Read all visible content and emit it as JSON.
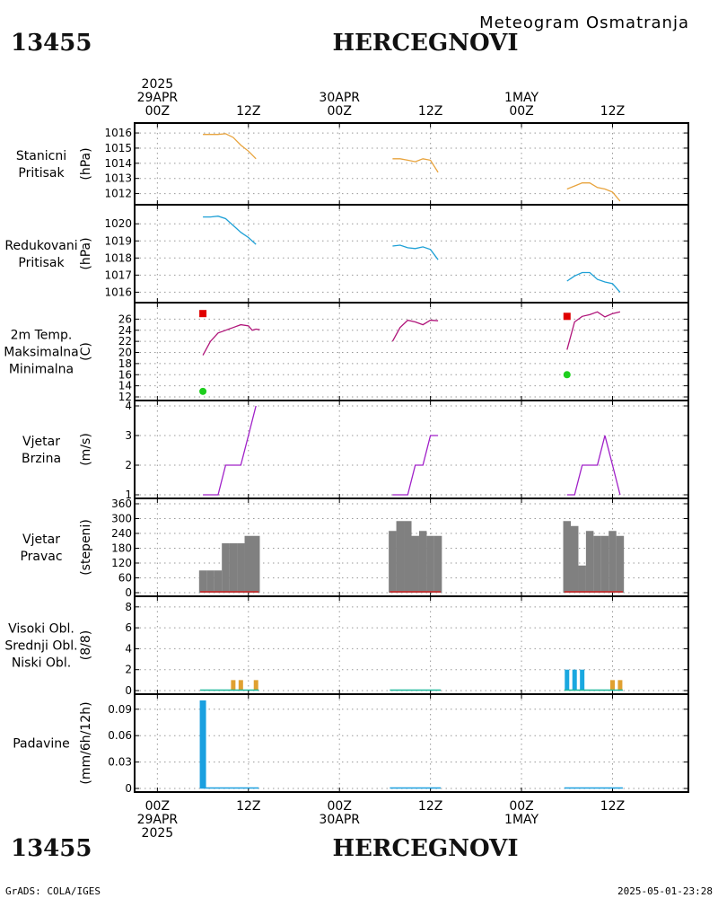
{
  "header": {
    "station_id": "13455",
    "station_name": "HERCEGNOVI",
    "product": "Meteogram Osmatranja"
  },
  "footer": {
    "station_id": "13455",
    "station_name": "HERCEGNOVI",
    "credit": "GrADS: COLA/IGES",
    "timestamp": "2025-05-01-23:28"
  },
  "time_axis": {
    "ticks": [
      {
        "h": 0,
        "lines": [
          "2025",
          "29APR",
          "00Z"
        ]
      },
      {
        "h": 12,
        "lines": [
          "12Z"
        ]
      },
      {
        "h": 24,
        "lines": [
          "30APR",
          "00Z"
        ]
      },
      {
        "h": 36,
        "lines": [
          "12Z"
        ]
      },
      {
        "h": 48,
        "lines": [
          "1MAY",
          "00Z"
        ]
      },
      {
        "h": 60,
        "lines": [
          "12Z"
        ]
      }
    ],
    "bottom_ticks": [
      {
        "h": 0,
        "lines": [
          "00Z",
          "29APR",
          "2025"
        ]
      },
      {
        "h": 12,
        "lines": [
          "12Z"
        ]
      },
      {
        "h": 24,
        "lines": [
          "00Z",
          "30APR"
        ]
      },
      {
        "h": 36,
        "lines": [
          "12Z"
        ]
      },
      {
        "h": 48,
        "lines": [
          "00Z",
          "1MAY"
        ]
      },
      {
        "h": 60,
        "lines": [
          "12Z"
        ]
      }
    ],
    "range_hours": [
      -3,
      70
    ],
    "grid": true
  },
  "colors": {
    "station_pressure": "#e8a33c",
    "reduced_pressure": "#1ea0d6",
    "temperature": "#b0157a",
    "tmax": "#e00000",
    "tmin": "#1ecf1e",
    "wind": "#a020c8",
    "wind_dir_bar": "#808080",
    "high_cloud": "#1aa8e0",
    "mid_cloud": "#1ab89a",
    "low_cloud": "#e0a030",
    "precip": "#1aa0e0"
  },
  "chart_data": [
    {
      "type": "line",
      "label_lines": [
        "Stanicni",
        "Pritisak"
      ],
      "unit": "(hPa)",
      "ylim": [
        1011.5,
        1016.3
      ],
      "yticks": [
        1012,
        1013,
        1014,
        1015,
        1016
      ],
      "series": [
        {
          "color_key": "station_pressure",
          "segments": [
            [
              [
                6,
                1015.9
              ],
              [
                7,
                1015.9
              ],
              [
                8,
                1015.9
              ],
              [
                9,
                1015.95
              ],
              [
                10,
                1015.7
              ],
              [
                11,
                1015.2
              ],
              [
                12,
                1014.8
              ],
              [
                13,
                1014.3
              ]
            ],
            [
              [
                31,
                1014.3
              ],
              [
                32,
                1014.3
              ],
              [
                33,
                1014.2
              ],
              [
                34,
                1014.1
              ],
              [
                35,
                1014.3
              ],
              [
                36,
                1014.2
              ],
              [
                37,
                1013.4
              ]
            ],
            [
              [
                54,
                1012.3
              ],
              [
                55,
                1012.5
              ],
              [
                56,
                1012.7
              ],
              [
                57,
                1012.7
              ],
              [
                58,
                1012.4
              ],
              [
                59,
                1012.3
              ],
              [
                60,
                1012.1
              ],
              [
                61,
                1011.5
              ]
            ]
          ]
        }
      ]
    },
    {
      "type": "line",
      "label_lines": [
        "Redukovani",
        "Pritisak"
      ],
      "unit": "(hPa)",
      "ylim": [
        1015.6,
        1020.8
      ],
      "yticks": [
        1016,
        1017,
        1018,
        1019,
        1020
      ],
      "series": [
        {
          "color_key": "reduced_pressure",
          "segments": [
            [
              [
                6,
                1020.4
              ],
              [
                7,
                1020.4
              ],
              [
                8,
                1020.45
              ],
              [
                9,
                1020.3
              ],
              [
                10,
                1019.9
              ],
              [
                11,
                1019.5
              ],
              [
                12,
                1019.2
              ],
              [
                13,
                1018.8
              ]
            ],
            [
              [
                31,
                1018.7
              ],
              [
                32,
                1018.75
              ],
              [
                33,
                1018.6
              ],
              [
                34,
                1018.55
              ],
              [
                35,
                1018.65
              ],
              [
                36,
                1018.5
              ],
              [
                37,
                1017.9
              ]
            ],
            [
              [
                54,
                1016.65
              ],
              [
                55,
                1016.95
              ],
              [
                56,
                1017.15
              ],
              [
                57,
                1017.15
              ],
              [
                58,
                1016.75
              ],
              [
                59,
                1016.6
              ],
              [
                60,
                1016.5
              ],
              [
                61,
                1016.0
              ]
            ]
          ]
        }
      ]
    },
    {
      "type": "line",
      "label_lines": [
        "2m Temp.",
        "Maksimalna",
        "Minimalna"
      ],
      "label_color_keys": [
        "temperature",
        "tmax",
        "tmin"
      ],
      "unit": "(C)",
      "ylim": [
        12,
        28
      ],
      "yticks": [
        12,
        14,
        16,
        18,
        20,
        22,
        24,
        26
      ],
      "series": [
        {
          "color_key": "temperature",
          "segments": [
            [
              [
                6,
                19.5
              ],
              [
                7,
                22
              ],
              [
                8,
                23.5
              ],
              [
                9,
                24
              ],
              [
                10,
                24.5
              ],
              [
                11,
                25
              ],
              [
                12,
                24.8
              ],
              [
                12.5,
                24
              ],
              [
                13,
                24.2
              ],
              [
                13.5,
                24.1
              ]
            ],
            [
              [
                31,
                22
              ],
              [
                32,
                24.5
              ],
              [
                33,
                25.8
              ],
              [
                34,
                25.5
              ],
              [
                35,
                25
              ],
              [
                36,
                25.8
              ],
              [
                37,
                25.7
              ]
            ],
            [
              [
                54,
                20.5
              ],
              [
                55,
                25.5
              ],
              [
                56,
                26.5
              ],
              [
                57,
                26.8
              ],
              [
                58,
                27.3
              ],
              [
                59,
                26.4
              ],
              [
                60,
                27
              ],
              [
                61,
                27.3
              ]
            ]
          ]
        },
        {
          "color_key": "tmax",
          "marker": "square",
          "points": [
            [
              6,
              27
            ],
            [
              54,
              26.5
            ]
          ]
        },
        {
          "color_key": "tmin",
          "marker": "circle",
          "points": [
            [
              6,
              13
            ],
            [
              54,
              16
            ]
          ]
        }
      ]
    },
    {
      "type": "line",
      "label_lines": [
        "Vjetar",
        "Brzina"
      ],
      "unit": "(m/s)",
      "ylim": [
        1,
        4
      ],
      "yticks": [
        1,
        2,
        3,
        4
      ],
      "series": [
        {
          "color_key": "wind",
          "segments": [
            [
              [
                6,
                1
              ],
              [
                7,
                1
              ],
              [
                8,
                1
              ],
              [
                9,
                2
              ],
              [
                10,
                2
              ],
              [
                11,
                2
              ],
              [
                12,
                3
              ],
              [
                13,
                4
              ]
            ],
            [
              [
                31,
                1
              ],
              [
                32,
                1
              ],
              [
                33,
                1
              ],
              [
                34,
                2
              ],
              [
                35,
                2
              ],
              [
                36,
                3
              ],
              [
                37,
                3
              ]
            ],
            [
              [
                54,
                1
              ],
              [
                55,
                1
              ],
              [
                56,
                2
              ],
              [
                57,
                2
              ],
              [
                58,
                2
              ],
              [
                59,
                3
              ],
              [
                60,
                2
              ],
              [
                61,
                1
              ]
            ]
          ]
        }
      ]
    },
    {
      "type": "bar",
      "label_lines": [
        "Vjetar",
        "Pravac"
      ],
      "unit": "(stepeni)",
      "ylim": [
        0,
        360
      ],
      "yticks": [
        0,
        60,
        120,
        180,
        240,
        300,
        360
      ],
      "series": [
        {
          "color_key": "wind_dir_bar",
          "points": [
            [
              6,
              90
            ],
            [
              7,
              90
            ],
            [
              8,
              90
            ],
            [
              9,
              200
            ],
            [
              10,
              200
            ],
            [
              11,
              200
            ],
            [
              12,
              230
            ],
            [
              13,
              230
            ],
            [
              31,
              250
            ],
            [
              32,
              290
            ],
            [
              33,
              290
            ],
            [
              34,
              230
            ],
            [
              35,
              250
            ],
            [
              36,
              230
            ],
            [
              37,
              230
            ],
            [
              54,
              290
            ],
            [
              55,
              270
            ],
            [
              56,
              110
            ],
            [
              57,
              250
            ],
            [
              58,
              230
            ],
            [
              59,
              230
            ],
            [
              60,
              250
            ],
            [
              61,
              230
            ]
          ]
        }
      ]
    },
    {
      "type": "bar",
      "label_lines": [
        "Visoki Obl.",
        "Srednji Obl.",
        "Niski Obl."
      ],
      "label_color_keys": [
        "high_cloud",
        "mid_cloud",
        "low_cloud"
      ],
      "unit": "(8/8)",
      "ylim": [
        0,
        8.5
      ],
      "yticks": [
        0,
        2,
        4,
        6,
        8
      ],
      "series": [
        {
          "color_key": "high_cloud",
          "points": [
            [
              54,
              2
            ],
            [
              55,
              2
            ],
            [
              56,
              2
            ]
          ]
        },
        {
          "color_key": "mid_cloud",
          "points": []
        },
        {
          "color_key": "low_cloud",
          "points": [
            [
              10,
              1
            ],
            [
              11,
              1
            ],
            [
              13,
              1
            ],
            [
              60,
              1
            ],
            [
              61,
              1
            ]
          ]
        }
      ]
    },
    {
      "type": "bar",
      "label_lines": [
        "Padavine"
      ],
      "label_color_keys": [
        "precip"
      ],
      "unit": "(mm/6h/12h)",
      "ylim": [
        0,
        0.101
      ],
      "yticks": [
        0,
        0.03,
        0.06,
        0.09
      ],
      "series": [
        {
          "color_key": "precip",
          "points": [
            [
              6,
              0.1
            ]
          ]
        }
      ]
    }
  ]
}
